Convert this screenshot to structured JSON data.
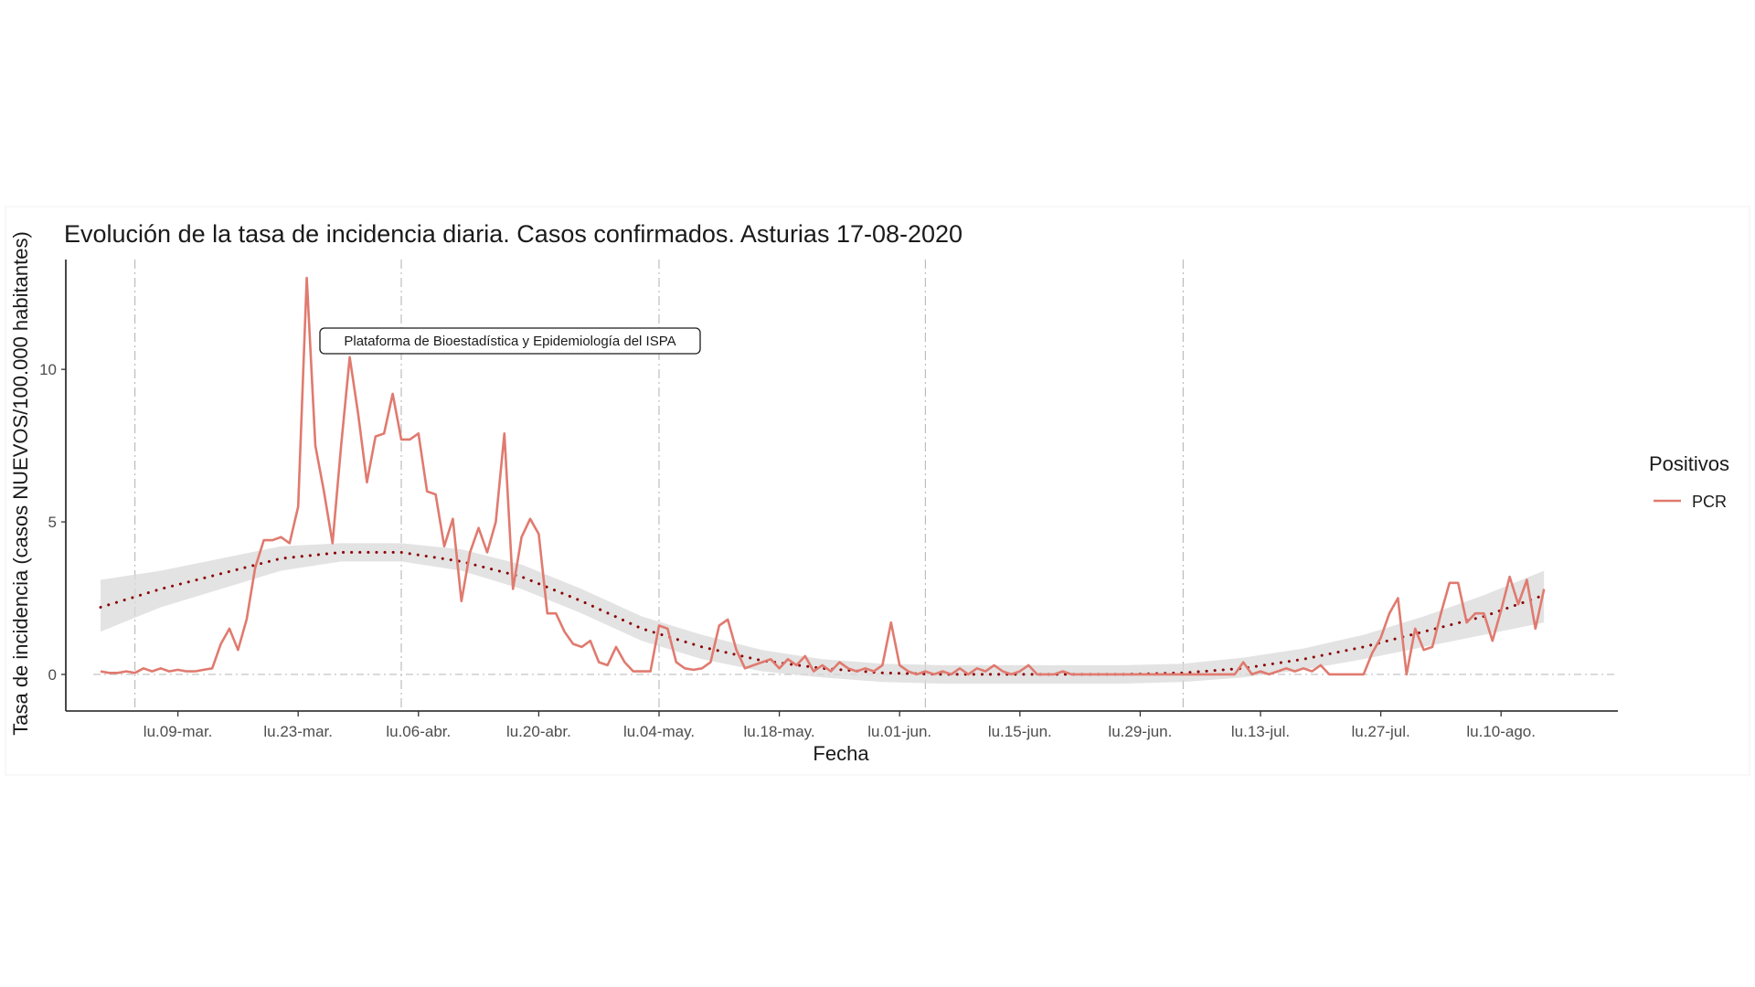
{
  "chart_data": {
    "type": "line",
    "title": "Evolución de la tasa de incidencia diaria. Casos confirmados. Asturias 17-08-2020",
    "xlabel": "Fecha",
    "ylabel": "Tasa de incidencia (casos NUEVOS/100.000 habitantes)",
    "x_start": "2020-02-29",
    "x_end": "2020-08-17",
    "ylim": [
      -1.2,
      13.6
    ],
    "y_ticks": [
      0,
      5,
      10
    ],
    "x_ticks": [
      {
        "date": "2020-03-09",
        "label": "lu.09-mar."
      },
      {
        "date": "2020-03-23",
        "label": "lu.23-mar."
      },
      {
        "date": "2020-04-06",
        "label": "lu.06-abr."
      },
      {
        "date": "2020-04-20",
        "label": "lu.20-abr."
      },
      {
        "date": "2020-05-04",
        "label": "lu.04-may."
      },
      {
        "date": "2020-05-18",
        "label": "lu.18-may."
      },
      {
        "date": "2020-06-01",
        "label": "lu.01-jun."
      },
      {
        "date": "2020-06-15",
        "label": "lu.15-jun."
      },
      {
        "date": "2020-06-29",
        "label": "lu.29-jun."
      },
      {
        "date": "2020-07-13",
        "label": "lu.13-jul."
      },
      {
        "date": "2020-07-27",
        "label": "lu.27-jul."
      },
      {
        "date": "2020-08-10",
        "label": "lu.10-ago."
      }
    ],
    "vlines": [
      "2020-03-04",
      "2020-04-04",
      "2020-05-04",
      "2020-06-04",
      "2020-07-04"
    ],
    "hline_y": 0,
    "grid": false,
    "legend": {
      "title": "Positivos",
      "position": "right",
      "items": [
        {
          "label": "PCR",
          "color": "#e07a6f"
        }
      ]
    },
    "annotation": "Plataforma de Bioestadística y Epidemiología del ISPA",
    "series": [
      {
        "name": "PCR",
        "color": "#e07a6f",
        "points": [
          [
            "2020-02-29",
            0.1
          ],
          [
            "2020-03-01",
            0.05
          ],
          [
            "2020-03-02",
            0.05
          ],
          [
            "2020-03-03",
            0.1
          ],
          [
            "2020-03-04",
            0.05
          ],
          [
            "2020-03-05",
            0.2
          ],
          [
            "2020-03-06",
            0.1
          ],
          [
            "2020-03-07",
            0.2
          ],
          [
            "2020-03-08",
            0.1
          ],
          [
            "2020-03-09",
            0.15
          ],
          [
            "2020-03-10",
            0.1
          ],
          [
            "2020-03-11",
            0.1
          ],
          [
            "2020-03-12",
            0.15
          ],
          [
            "2020-03-13",
            0.2
          ],
          [
            "2020-03-14",
            1.0
          ],
          [
            "2020-03-15",
            1.5
          ],
          [
            "2020-03-16",
            0.8
          ],
          [
            "2020-03-17",
            1.8
          ],
          [
            "2020-03-18",
            3.5
          ],
          [
            "2020-03-19",
            4.4
          ],
          [
            "2020-03-20",
            4.4
          ],
          [
            "2020-03-21",
            4.5
          ],
          [
            "2020-03-22",
            4.3
          ],
          [
            "2020-03-23",
            5.5
          ],
          [
            "2020-03-24",
            13.0
          ],
          [
            "2020-03-25",
            7.5
          ],
          [
            "2020-03-26",
            6.0
          ],
          [
            "2020-03-27",
            4.3
          ],
          [
            "2020-03-28",
            7.5
          ],
          [
            "2020-03-29",
            10.4
          ],
          [
            "2020-03-30",
            8.5
          ],
          [
            "2020-03-31",
            6.3
          ],
          [
            "2020-04-01",
            7.8
          ],
          [
            "2020-04-02",
            7.9
          ],
          [
            "2020-04-03",
            9.2
          ],
          [
            "2020-04-04",
            7.7
          ],
          [
            "2020-04-05",
            7.7
          ],
          [
            "2020-04-06",
            7.9
          ],
          [
            "2020-04-07",
            6.0
          ],
          [
            "2020-04-08",
            5.9
          ],
          [
            "2020-04-09",
            4.2
          ],
          [
            "2020-04-10",
            5.1
          ],
          [
            "2020-04-11",
            2.4
          ],
          [
            "2020-04-12",
            4.0
          ],
          [
            "2020-04-13",
            4.8
          ],
          [
            "2020-04-14",
            4.0
          ],
          [
            "2020-04-15",
            5.0
          ],
          [
            "2020-04-16",
            7.9
          ],
          [
            "2020-04-17",
            2.8
          ],
          [
            "2020-04-18",
            4.5
          ],
          [
            "2020-04-19",
            5.1
          ],
          [
            "2020-04-20",
            4.6
          ],
          [
            "2020-04-21",
            2.0
          ],
          [
            "2020-04-22",
            2.0
          ],
          [
            "2020-04-23",
            1.4
          ],
          [
            "2020-04-24",
            1.0
          ],
          [
            "2020-04-25",
            0.9
          ],
          [
            "2020-04-26",
            1.1
          ],
          [
            "2020-04-27",
            0.4
          ],
          [
            "2020-04-28",
            0.3
          ],
          [
            "2020-04-29",
            0.9
          ],
          [
            "2020-04-30",
            0.4
          ],
          [
            "2020-05-01",
            0.1
          ],
          [
            "2020-05-02",
            0.1
          ],
          [
            "2020-05-03",
            0.1
          ],
          [
            "2020-05-04",
            1.6
          ],
          [
            "2020-05-05",
            1.5
          ],
          [
            "2020-05-06",
            0.4
          ],
          [
            "2020-05-07",
            0.2
          ],
          [
            "2020-05-08",
            0.15
          ],
          [
            "2020-05-09",
            0.2
          ],
          [
            "2020-05-10",
            0.4
          ],
          [
            "2020-05-11",
            1.6
          ],
          [
            "2020-05-12",
            1.8
          ],
          [
            "2020-05-13",
            0.8
          ],
          [
            "2020-05-14",
            0.2
          ],
          [
            "2020-05-15",
            0.3
          ],
          [
            "2020-05-16",
            0.4
          ],
          [
            "2020-05-17",
            0.5
          ],
          [
            "2020-05-18",
            0.2
          ],
          [
            "2020-05-19",
            0.5
          ],
          [
            "2020-05-20",
            0.3
          ],
          [
            "2020-05-21",
            0.6
          ],
          [
            "2020-05-22",
            0.1
          ],
          [
            "2020-05-23",
            0.3
          ],
          [
            "2020-05-24",
            0.1
          ],
          [
            "2020-05-25",
            0.4
          ],
          [
            "2020-05-26",
            0.2
          ],
          [
            "2020-05-27",
            0.1
          ],
          [
            "2020-05-28",
            0.2
          ],
          [
            "2020-05-29",
            0.1
          ],
          [
            "2020-05-30",
            0.3
          ],
          [
            "2020-05-31",
            1.7
          ],
          [
            "2020-06-01",
            0.3
          ],
          [
            "2020-06-02",
            0.1
          ],
          [
            "2020-06-03",
            0.0
          ],
          [
            "2020-06-04",
            0.1
          ],
          [
            "2020-06-05",
            0.0
          ],
          [
            "2020-06-06",
            0.1
          ],
          [
            "2020-06-07",
            0.0
          ],
          [
            "2020-06-08",
            0.2
          ],
          [
            "2020-06-09",
            0.0
          ],
          [
            "2020-06-10",
            0.2
          ],
          [
            "2020-06-11",
            0.1
          ],
          [
            "2020-06-12",
            0.3
          ],
          [
            "2020-06-13",
            0.1
          ],
          [
            "2020-06-14",
            0.0
          ],
          [
            "2020-06-15",
            0.1
          ],
          [
            "2020-06-16",
            0.3
          ],
          [
            "2020-06-17",
            0.0
          ],
          [
            "2020-06-18",
            0.0
          ],
          [
            "2020-06-19",
            0.0
          ],
          [
            "2020-06-20",
            0.1
          ],
          [
            "2020-06-21",
            0.0
          ],
          [
            "2020-06-22",
            0.0
          ],
          [
            "2020-06-23",
            0.0
          ],
          [
            "2020-06-24",
            0.0
          ],
          [
            "2020-06-25",
            0.0
          ],
          [
            "2020-06-26",
            0.0
          ],
          [
            "2020-06-27",
            0.0
          ],
          [
            "2020-06-28",
            0.0
          ],
          [
            "2020-06-29",
            0.0
          ],
          [
            "2020-06-30",
            0.0
          ],
          [
            "2020-07-01",
            0.0
          ],
          [
            "2020-07-02",
            0.0
          ],
          [
            "2020-07-03",
            0.0
          ],
          [
            "2020-07-04",
            0.0
          ],
          [
            "2020-07-05",
            0.0
          ],
          [
            "2020-07-06",
            0.0
          ],
          [
            "2020-07-07",
            0.0
          ],
          [
            "2020-07-08",
            0.0
          ],
          [
            "2020-07-09",
            0.0
          ],
          [
            "2020-07-10",
            0.0
          ],
          [
            "2020-07-11",
            0.4
          ],
          [
            "2020-07-12",
            0.0
          ],
          [
            "2020-07-13",
            0.1
          ],
          [
            "2020-07-14",
            0.0
          ],
          [
            "2020-07-15",
            0.1
          ],
          [
            "2020-07-16",
            0.2
          ],
          [
            "2020-07-17",
            0.1
          ],
          [
            "2020-07-18",
            0.2
          ],
          [
            "2020-07-19",
            0.1
          ],
          [
            "2020-07-20",
            0.3
          ],
          [
            "2020-07-21",
            0.0
          ],
          [
            "2020-07-22",
            0.0
          ],
          [
            "2020-07-23",
            0.0
          ],
          [
            "2020-07-24",
            0.0
          ],
          [
            "2020-07-25",
            0.0
          ],
          [
            "2020-07-26",
            0.7
          ],
          [
            "2020-07-27",
            1.2
          ],
          [
            "2020-07-28",
            2.0
          ],
          [
            "2020-07-29",
            2.5
          ],
          [
            "2020-07-30",
            0.0
          ],
          [
            "2020-07-31",
            1.5
          ],
          [
            "2020-08-01",
            0.8
          ],
          [
            "2020-08-02",
            0.9
          ],
          [
            "2020-08-03",
            2.0
          ],
          [
            "2020-08-04",
            3.0
          ],
          [
            "2020-08-05",
            3.0
          ],
          [
            "2020-08-06",
            1.7
          ],
          [
            "2020-08-07",
            2.0
          ],
          [
            "2020-08-08",
            2.0
          ],
          [
            "2020-08-09",
            1.1
          ],
          [
            "2020-08-10",
            2.1
          ],
          [
            "2020-08-11",
            3.2
          ],
          [
            "2020-08-12",
            2.3
          ],
          [
            "2020-08-13",
            3.1
          ],
          [
            "2020-08-14",
            1.5
          ],
          [
            "2020-08-15",
            2.8
          ]
        ]
      }
    ],
    "trend": {
      "style": "dotted",
      "color": "#8b0000",
      "band_color": "#d9d9d9",
      "points": [
        [
          "2020-02-29",
          2.2,
          1.4,
          3.1
        ],
        [
          "2020-03-07",
          2.8,
          2.2,
          3.4
        ],
        [
          "2020-03-14",
          3.3,
          2.8,
          3.8
        ],
        [
          "2020-03-21",
          3.8,
          3.4,
          4.2
        ],
        [
          "2020-03-28",
          4.0,
          3.7,
          4.3
        ],
        [
          "2020-04-04",
          4.0,
          3.7,
          4.3
        ],
        [
          "2020-04-11",
          3.7,
          3.4,
          4.1
        ],
        [
          "2020-04-18",
          3.2,
          2.8,
          3.6
        ],
        [
          "2020-04-25",
          2.4,
          2.0,
          2.8
        ],
        [
          "2020-05-02",
          1.5,
          1.1,
          1.9
        ],
        [
          "2020-05-09",
          0.9,
          0.5,
          1.3
        ],
        [
          "2020-05-16",
          0.45,
          0.1,
          0.8
        ],
        [
          "2020-05-23",
          0.2,
          -0.1,
          0.5
        ],
        [
          "2020-05-30",
          0.05,
          -0.25,
          0.35
        ],
        [
          "2020-06-06",
          0.0,
          -0.3,
          0.3
        ],
        [
          "2020-06-13",
          0.0,
          -0.3,
          0.3
        ],
        [
          "2020-06-20",
          0.0,
          -0.3,
          0.3
        ],
        [
          "2020-06-27",
          0.0,
          -0.3,
          0.3
        ],
        [
          "2020-07-04",
          0.05,
          -0.25,
          0.35
        ],
        [
          "2020-07-11",
          0.2,
          -0.1,
          0.55
        ],
        [
          "2020-07-18",
          0.5,
          0.15,
          0.85
        ],
        [
          "2020-07-25",
          0.9,
          0.5,
          1.3
        ],
        [
          "2020-08-01",
          1.4,
          0.9,
          1.9
        ],
        [
          "2020-08-08",
          1.9,
          1.3,
          2.6
        ],
        [
          "2020-08-15",
          2.6,
          1.7,
          3.4
        ]
      ]
    }
  }
}
